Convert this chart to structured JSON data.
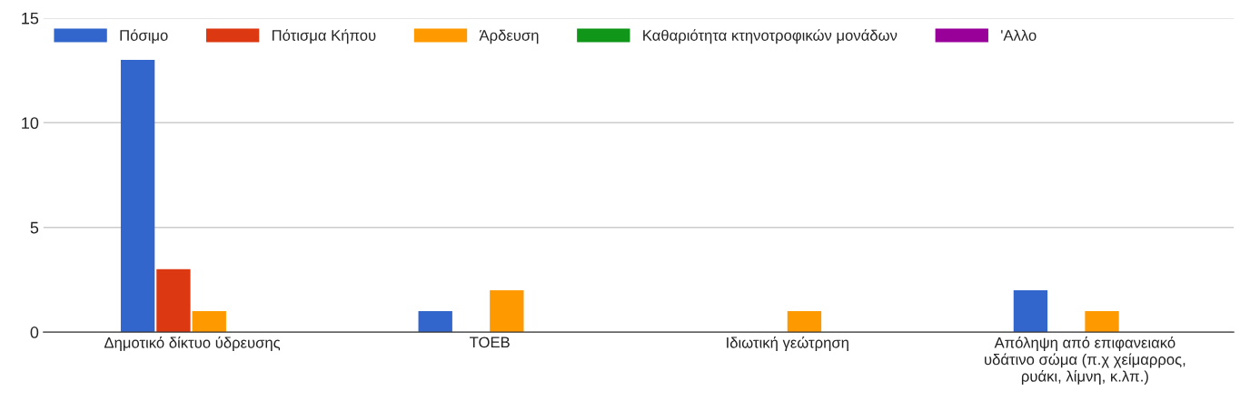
{
  "chart_data": {
    "type": "bar",
    "categories": [
      "Δημοτικό δίκτυο ύδρευσης",
      "ΤΟΕΒ",
      "Ιδιωτική γεώτρηση",
      "Απόληψη από επιφανειακό\nυδάτινο σώμα (π.χ χείμαρρος,\nρυάκι, λίμνη, κ.λπ.)"
    ],
    "series": [
      {
        "name": "Πόσιμο",
        "color": "#3366cc",
        "values": [
          13,
          1,
          0,
          2
        ]
      },
      {
        "name": "Πότισμα Κήπου",
        "color": "#dc3912",
        "values": [
          3,
          0,
          0,
          0
        ]
      },
      {
        "name": "Άρδευση",
        "color": "#ff9900",
        "values": [
          1,
          2,
          1,
          1
        ]
      },
      {
        "name": "Καθαριότητα κτηνοτροφικών μονάδων",
        "color": "#109618",
        "values": [
          0,
          0,
          0,
          0
        ]
      },
      {
        "name": "'Αλλο",
        "color": "#990099",
        "values": [
          0,
          0,
          0,
          0
        ]
      }
    ],
    "ylim": [
      0,
      15
    ],
    "yticks": [
      0,
      5,
      10,
      15
    ],
    "grid": "y",
    "legend": "top left"
  }
}
